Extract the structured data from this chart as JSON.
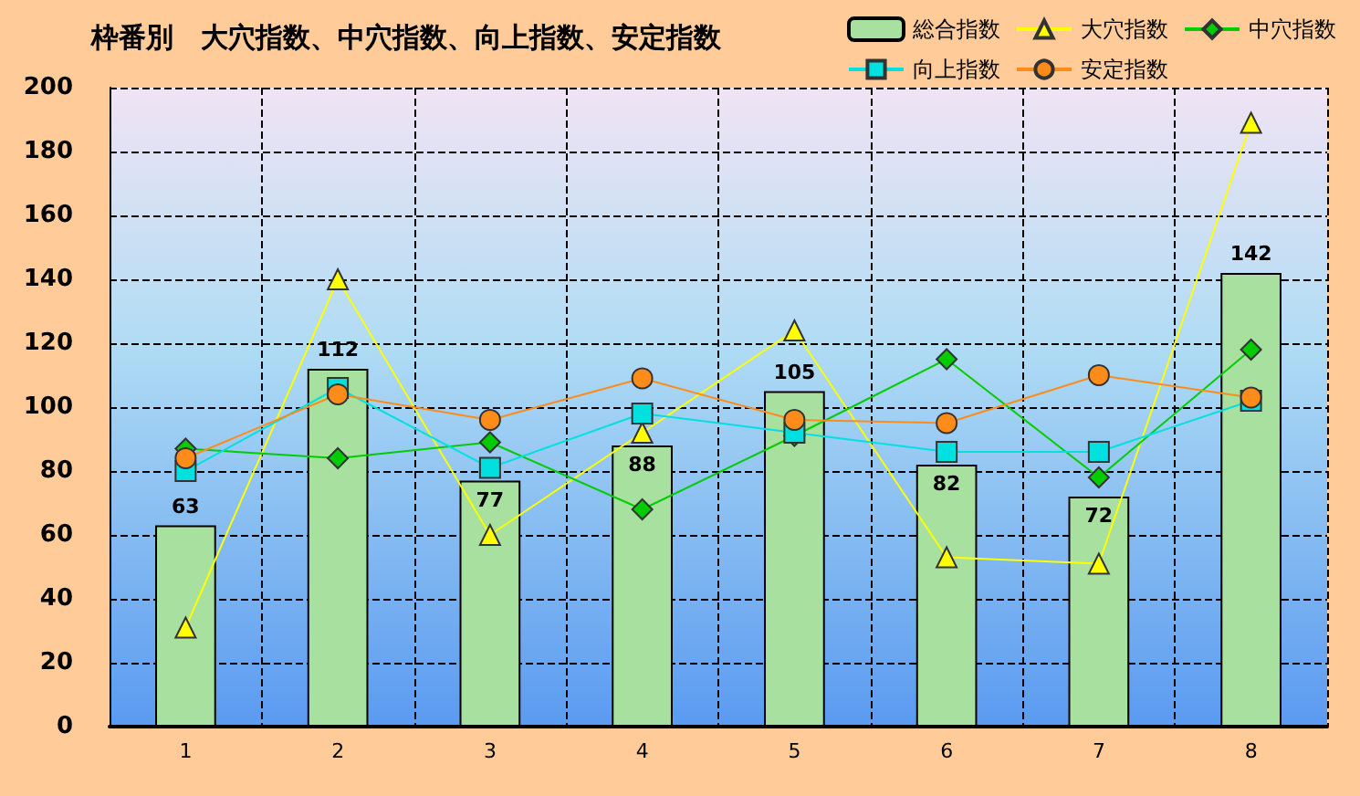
{
  "chart_data": {
    "type": "bar",
    "title": "枠番別　大穴指数、中穴指数、向上指数、安定指数",
    "categories": [
      "1",
      "2",
      "3",
      "4",
      "5",
      "6",
      "7",
      "8"
    ],
    "series": [
      {
        "name": "総合指数",
        "color": "#a8e0a0",
        "values": [
          63,
          112,
          77,
          88,
          105,
          82,
          72,
          142
        ],
        "value_labels": [
          "63",
          "112",
          "77",
          "88",
          "105",
          "82",
          "72",
          "142"
        ]
      },
      {
        "name": "大穴指数",
        "type": "line",
        "marker": "triangle",
        "color": "#ffff00",
        "values": [
          31,
          140,
          60,
          92,
          124,
          53,
          51,
          189
        ]
      },
      {
        "name": "中穴指数",
        "type": "line",
        "marker": "diamond",
        "color": "#00cc00",
        "values": [
          87,
          84,
          89,
          68,
          91,
          115,
          78,
          118
        ]
      },
      {
        "name": "向上指数",
        "type": "line",
        "marker": "square",
        "color": "#00e0e0",
        "values": [
          80,
          106,
          81,
          98,
          92,
          86,
          86,
          102
        ]
      },
      {
        "name": "安定指数",
        "type": "line",
        "marker": "circle",
        "color": "#ff8c1a",
        "values": [
          84,
          104,
          96,
          109,
          96,
          95,
          110,
          103
        ]
      }
    ],
    "ylim": [
      0,
      200
    ],
    "yticks": [
      0,
      20,
      40,
      60,
      80,
      100,
      120,
      140,
      160,
      180,
      200
    ],
    "grid": true,
    "legend": "top right"
  }
}
